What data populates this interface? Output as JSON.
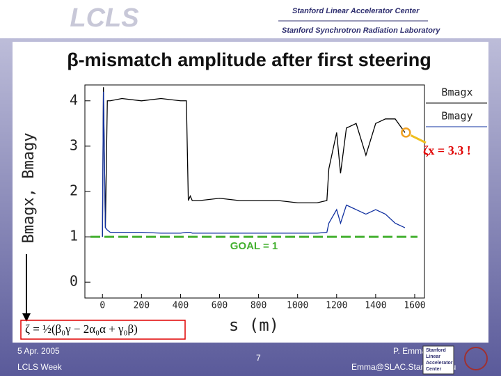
{
  "header": {
    "logo": "LCLS",
    "org1": "Stanford Linear Accelerator Center",
    "org2": "Stanford Synchrotron Radiation Laboratory"
  },
  "chart_data": {
    "type": "line",
    "title": "β-mismatch amplitude after first steering",
    "xlabel": "s (m)",
    "ylabel": "Bmagx, Bmagy",
    "x": [
      0,
      5,
      15,
      25,
      40,
      100,
      200,
      300,
      400,
      430,
      440,
      450,
      460,
      500,
      600,
      700,
      800,
      900,
      1000,
      1100,
      1150,
      1160,
      1200,
      1220,
      1250,
      1300,
      1350,
      1400,
      1450,
      1500,
      1550
    ],
    "series": [
      {
        "name": "Bmagx",
        "color": "#000000",
        "values": [
          1.0,
          4.3,
          1.2,
          4.0,
          4.0,
          4.05,
          4.0,
          4.05,
          4.0,
          4.0,
          1.8,
          1.9,
          1.8,
          1.8,
          1.85,
          1.8,
          1.8,
          1.8,
          1.75,
          1.75,
          1.8,
          2.5,
          3.3,
          2.4,
          3.4,
          3.5,
          2.8,
          3.5,
          3.6,
          3.6,
          3.3
        ]
      },
      {
        "name": "Bmagy",
        "color": "#1030a0",
        "values": [
          1.0,
          4.2,
          1.2,
          1.15,
          1.1,
          1.1,
          1.1,
          1.08,
          1.08,
          1.1,
          1.1,
          1.1,
          1.08,
          1.08,
          1.08,
          1.08,
          1.08,
          1.08,
          1.08,
          1.08,
          1.1,
          1.3,
          1.6,
          1.3,
          1.7,
          1.6,
          1.5,
          1.6,
          1.5,
          1.3,
          1.2
        ]
      }
    ],
    "xlim": [
      -90,
      1650
    ],
    "ylim": [
      -0.35,
      4.35
    ],
    "xticks": [
      0,
      200,
      400,
      600,
      800,
      1000,
      1200,
      1400,
      1600
    ],
    "yticks": [
      0,
      1,
      2,
      3,
      4
    ],
    "goal_line": 1,
    "goal_label": "GOAL = 1",
    "annotation": {
      "text": "ζx = 3.3 !",
      "x": 1555,
      "y": 3.3
    },
    "formula": "ζ = ½(β₀γ − 2α₀α + γ₀β)",
    "legend": "top-right"
  },
  "footer": {
    "date": "5 Apr. 2005",
    "event": "LCLS Week",
    "page": "7",
    "author": "P. Emma",
    "email": "Emma@SLAC.Stanford.edu",
    "logo": [
      "Stanford",
      "Linear",
      "Accelerator",
      "Center"
    ]
  }
}
